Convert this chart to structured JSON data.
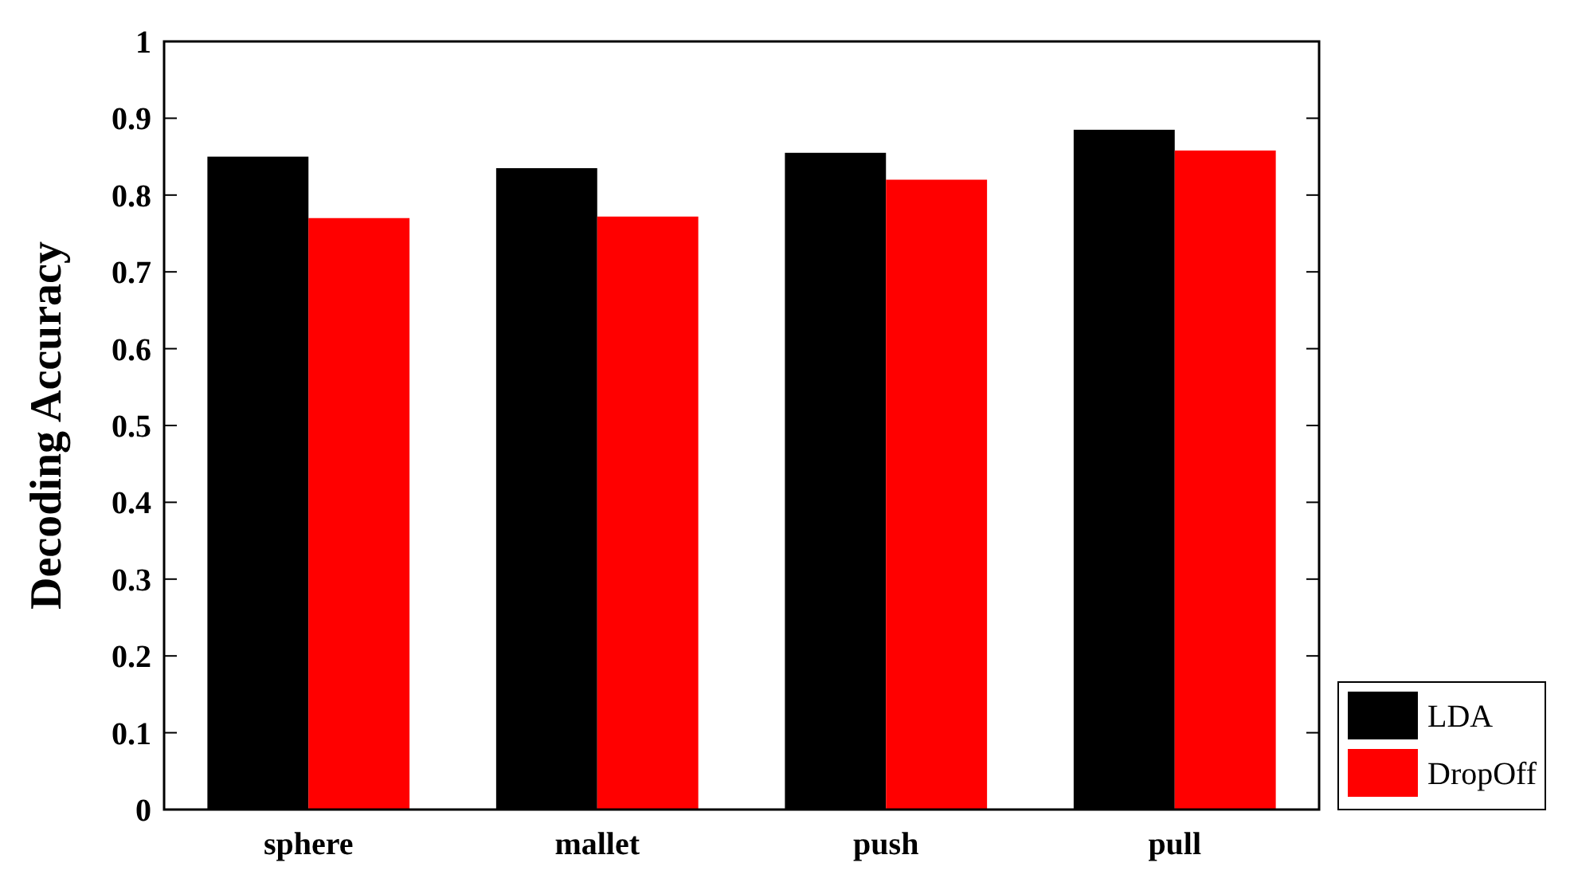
{
  "chart_data": {
    "type": "bar",
    "ylabel": "Decoding Accuracy",
    "categories": [
      "sphere",
      "mallet",
      "push",
      "pull"
    ],
    "series": [
      {
        "name": "LDA",
        "color": "#000000",
        "values": [
          0.85,
          0.835,
          0.855,
          0.885
        ]
      },
      {
        "name": "DropOff",
        "color": "#ff0000",
        "values": [
          0.77,
          0.772,
          0.82,
          0.858
        ]
      }
    ],
    "ylim": [
      0,
      1
    ],
    "yticks": [
      0,
      0.1,
      0.2,
      0.3,
      0.4,
      0.5,
      0.6,
      0.7,
      0.8,
      0.9,
      1
    ],
    "grid": false,
    "legend": "right"
  }
}
